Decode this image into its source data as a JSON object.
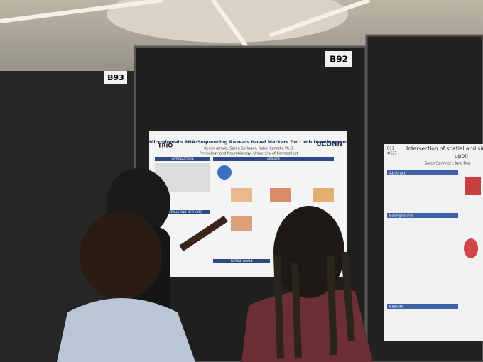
{
  "signs": [
    "B93",
    "B92"
  ],
  "center_poster": {
    "logo": "TRiO",
    "title": "Microdomain RNA-Sequencing Reveals Novel Markers for Limb Development",
    "authors": "Kevon Afriyie, Saren Springer, Rahul Kanadia Ph.D",
    "affiliation": "Physiology and Neurobiology, University of Connecticut",
    "university": "UCONN",
    "sections": [
      "INTRODUCTION",
      "RESULTS",
      "MATERIALS AND METHODS",
      "FUTURE GOALS"
    ]
  },
  "right_poster": {
    "board": "B91",
    "number": "#527",
    "title": "Intersection of spatial and single",
    "title_end": "upon",
    "authors": "Saren Springer¹, Kyle Dra",
    "sections": [
      "Abstract",
      "Background",
      "Results"
    ]
  }
}
